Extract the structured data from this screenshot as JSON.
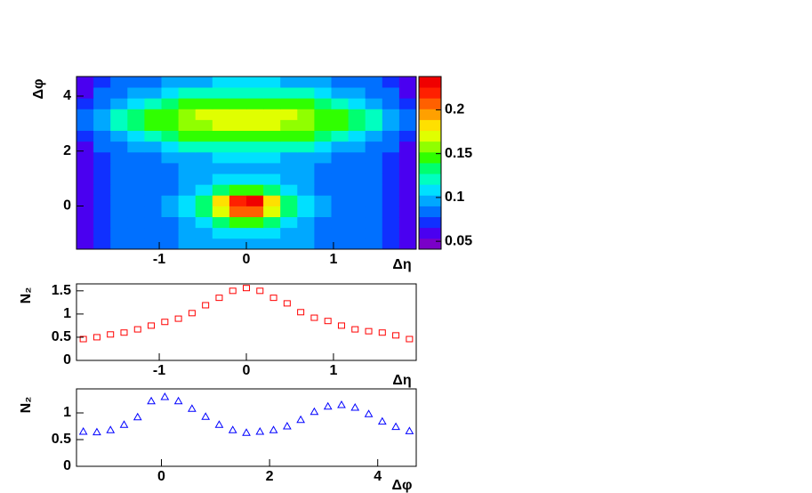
{
  "chart_data": [
    {
      "type": "heatmap",
      "x_label": "Δη",
      "y_label": "Δφ",
      "xlim": [
        -1.95,
        1.95
      ],
      "ylim": [
        -1.571,
        4.712
      ],
      "xticks": [
        -1,
        0,
        1
      ],
      "yticks": [
        0,
        2,
        4
      ],
      "x_bins": [
        -1.95,
        -1.755,
        -1.56,
        -1.365,
        -1.17,
        -0.975,
        -0.78,
        -0.585,
        -0.39,
        -0.195,
        0,
        0.195,
        0.39,
        0.585,
        0.78,
        0.975,
        1.17,
        1.365,
        1.56,
        1.755,
        1.95
      ],
      "y_bins": [
        -1.571,
        -1.178,
        -0.785,
        -0.393,
        0,
        0.393,
        0.785,
        1.178,
        1.571,
        1.963,
        2.356,
        2.749,
        3.142,
        3.534,
        3.927,
        4.32,
        4.712
      ],
      "z": [
        [
          0.06,
          0.07,
          0.08,
          0.08,
          0.09,
          0.09,
          0.1,
          0.1,
          0.1,
          0.1,
          0.1,
          0.1,
          0.1,
          0.1,
          0.09,
          0.09,
          0.08,
          0.08,
          0.07,
          0.06
        ],
        [
          0.06,
          0.07,
          0.08,
          0.08,
          0.09,
          0.09,
          0.1,
          0.1,
          0.11,
          0.11,
          0.11,
          0.11,
          0.1,
          0.1,
          0.09,
          0.09,
          0.08,
          0.08,
          0.07,
          0.06
        ],
        [
          0.06,
          0.07,
          0.08,
          0.08,
          0.09,
          0.09,
          0.1,
          0.11,
          0.13,
          0.15,
          0.15,
          0.13,
          0.11,
          0.1,
          0.09,
          0.09,
          0.08,
          0.08,
          0.07,
          0.06
        ],
        [
          0.06,
          0.07,
          0.08,
          0.08,
          0.09,
          0.1,
          0.11,
          0.13,
          0.17,
          0.21,
          0.21,
          0.17,
          0.13,
          0.11,
          0.1,
          0.09,
          0.08,
          0.08,
          0.07,
          0.06
        ],
        [
          0.06,
          0.07,
          0.08,
          0.08,
          0.09,
          0.1,
          0.11,
          0.13,
          0.18,
          0.22,
          0.23,
          0.18,
          0.13,
          0.11,
          0.1,
          0.09,
          0.08,
          0.08,
          0.07,
          0.06
        ],
        [
          0.06,
          0.07,
          0.08,
          0.08,
          0.09,
          0.09,
          0.1,
          0.11,
          0.13,
          0.15,
          0.15,
          0.13,
          0.11,
          0.1,
          0.09,
          0.09,
          0.08,
          0.08,
          0.07,
          0.06
        ],
        [
          0.06,
          0.07,
          0.08,
          0.08,
          0.09,
          0.09,
          0.1,
          0.1,
          0.11,
          0.11,
          0.11,
          0.11,
          0.1,
          0.1,
          0.09,
          0.09,
          0.08,
          0.08,
          0.07,
          0.06
        ],
        [
          0.06,
          0.07,
          0.08,
          0.08,
          0.09,
          0.09,
          0.1,
          0.1,
          0.1,
          0.1,
          0.1,
          0.1,
          0.1,
          0.1,
          0.09,
          0.09,
          0.08,
          0.08,
          0.07,
          0.06
        ],
        [
          0.06,
          0.07,
          0.08,
          0.09,
          0.09,
          0.1,
          0.1,
          0.1,
          0.11,
          0.11,
          0.11,
          0.11,
          0.1,
          0.1,
          0.1,
          0.09,
          0.09,
          0.08,
          0.07,
          0.06
        ],
        [
          0.06,
          0.08,
          0.09,
          0.1,
          0.1,
          0.11,
          0.12,
          0.12,
          0.12,
          0.12,
          0.12,
          0.12,
          0.12,
          0.12,
          0.11,
          0.1,
          0.1,
          0.09,
          0.08,
          0.06
        ],
        [
          0.07,
          0.09,
          0.1,
          0.11,
          0.12,
          0.13,
          0.14,
          0.14,
          0.14,
          0.14,
          0.14,
          0.14,
          0.14,
          0.14,
          0.13,
          0.12,
          0.11,
          0.1,
          0.09,
          0.07
        ],
        [
          0.08,
          0.1,
          0.12,
          0.13,
          0.14,
          0.15,
          0.16,
          0.16,
          0.17,
          0.17,
          0.17,
          0.17,
          0.16,
          0.16,
          0.15,
          0.14,
          0.13,
          0.12,
          0.1,
          0.08
        ],
        [
          0.08,
          0.1,
          0.12,
          0.13,
          0.14,
          0.15,
          0.16,
          0.17,
          0.17,
          0.17,
          0.17,
          0.17,
          0.17,
          0.16,
          0.15,
          0.14,
          0.13,
          0.12,
          0.1,
          0.08
        ],
        [
          0.07,
          0.09,
          0.1,
          0.11,
          0.12,
          0.13,
          0.14,
          0.14,
          0.14,
          0.14,
          0.14,
          0.14,
          0.14,
          0.14,
          0.13,
          0.12,
          0.11,
          0.1,
          0.09,
          0.07
        ],
        [
          0.06,
          0.08,
          0.09,
          0.1,
          0.1,
          0.11,
          0.12,
          0.12,
          0.12,
          0.12,
          0.12,
          0.12,
          0.12,
          0.12,
          0.11,
          0.1,
          0.1,
          0.09,
          0.08,
          0.06
        ],
        [
          0.06,
          0.07,
          0.08,
          0.09,
          0.09,
          0.1,
          0.1,
          0.1,
          0.11,
          0.11,
          0.11,
          0.11,
          0.1,
          0.1,
          0.1,
          0.09,
          0.09,
          0.08,
          0.07,
          0.06
        ]
      ],
      "zlim": [
        0.041,
        0.238
      ],
      "zticks": [
        0.05,
        0.1,
        0.15,
        0.2
      ],
      "palette": [
        "#7a00c8",
        "#4a00f0",
        "#1030ff",
        "#0070ff",
        "#00a8ff",
        "#00e0ff",
        "#00ffc0",
        "#00ff70",
        "#30ff00",
        "#90ff00",
        "#e0ff00",
        "#ffe000",
        "#ffa000",
        "#ff6000",
        "#ff2000",
        "#f00000"
      ]
    },
    {
      "type": "scatter",
      "marker": "square",
      "color": "#ff0000",
      "x_label": "Δη",
      "y_label": "N₂",
      "xlim": [
        -1.95,
        1.95
      ],
      "ylim": [
        0,
        1.65
      ],
      "xticks": [
        -1,
        0,
        1
      ],
      "yticks": [
        0,
        0.5,
        1,
        1.5
      ],
      "x": [
        -1.872,
        -1.716,
        -1.56,
        -1.404,
        -1.248,
        -1.092,
        -0.936,
        -0.78,
        -0.624,
        -0.468,
        -0.312,
        -0.156,
        0,
        0.156,
        0.312,
        0.468,
        0.624,
        0.78,
        0.936,
        1.092,
        1.248,
        1.404,
        1.56,
        1.716,
        1.872
      ],
      "values": [
        0.46,
        0.5,
        0.56,
        0.6,
        0.67,
        0.75,
        0.83,
        0.9,
        1.02,
        1.19,
        1.35,
        1.5,
        1.56,
        1.5,
        1.35,
        1.23,
        1.04,
        0.92,
        0.85,
        0.75,
        0.67,
        0.63,
        0.6,
        0.54,
        0.46
      ]
    },
    {
      "type": "scatter",
      "marker": "triangle",
      "color": "#0000ff",
      "x_label": "Δφ",
      "y_label": "N₂",
      "xlim": [
        -1.571,
        4.712
      ],
      "ylim": [
        0,
        1.45
      ],
      "xticks": [
        0,
        2,
        4
      ],
      "yticks": [
        0,
        0.5,
        1
      ],
      "x": [
        -1.445,
        -1.194,
        -0.942,
        -0.691,
        -0.44,
        -0.188,
        0.063,
        0.314,
        0.565,
        0.817,
        1.068,
        1.319,
        1.571,
        1.822,
        2.073,
        2.325,
        2.576,
        2.827,
        3.079,
        3.33,
        3.581,
        3.833,
        4.084,
        4.335,
        4.587
      ],
      "values": [
        0.65,
        0.64,
        0.68,
        0.78,
        0.92,
        1.22,
        1.3,
        1.22,
        1.08,
        0.93,
        0.78,
        0.68,
        0.63,
        0.65,
        0.68,
        0.75,
        0.87,
        1.02,
        1.12,
        1.15,
        1.1,
        0.98,
        0.84,
        0.74,
        0.66
      ]
    }
  ]
}
